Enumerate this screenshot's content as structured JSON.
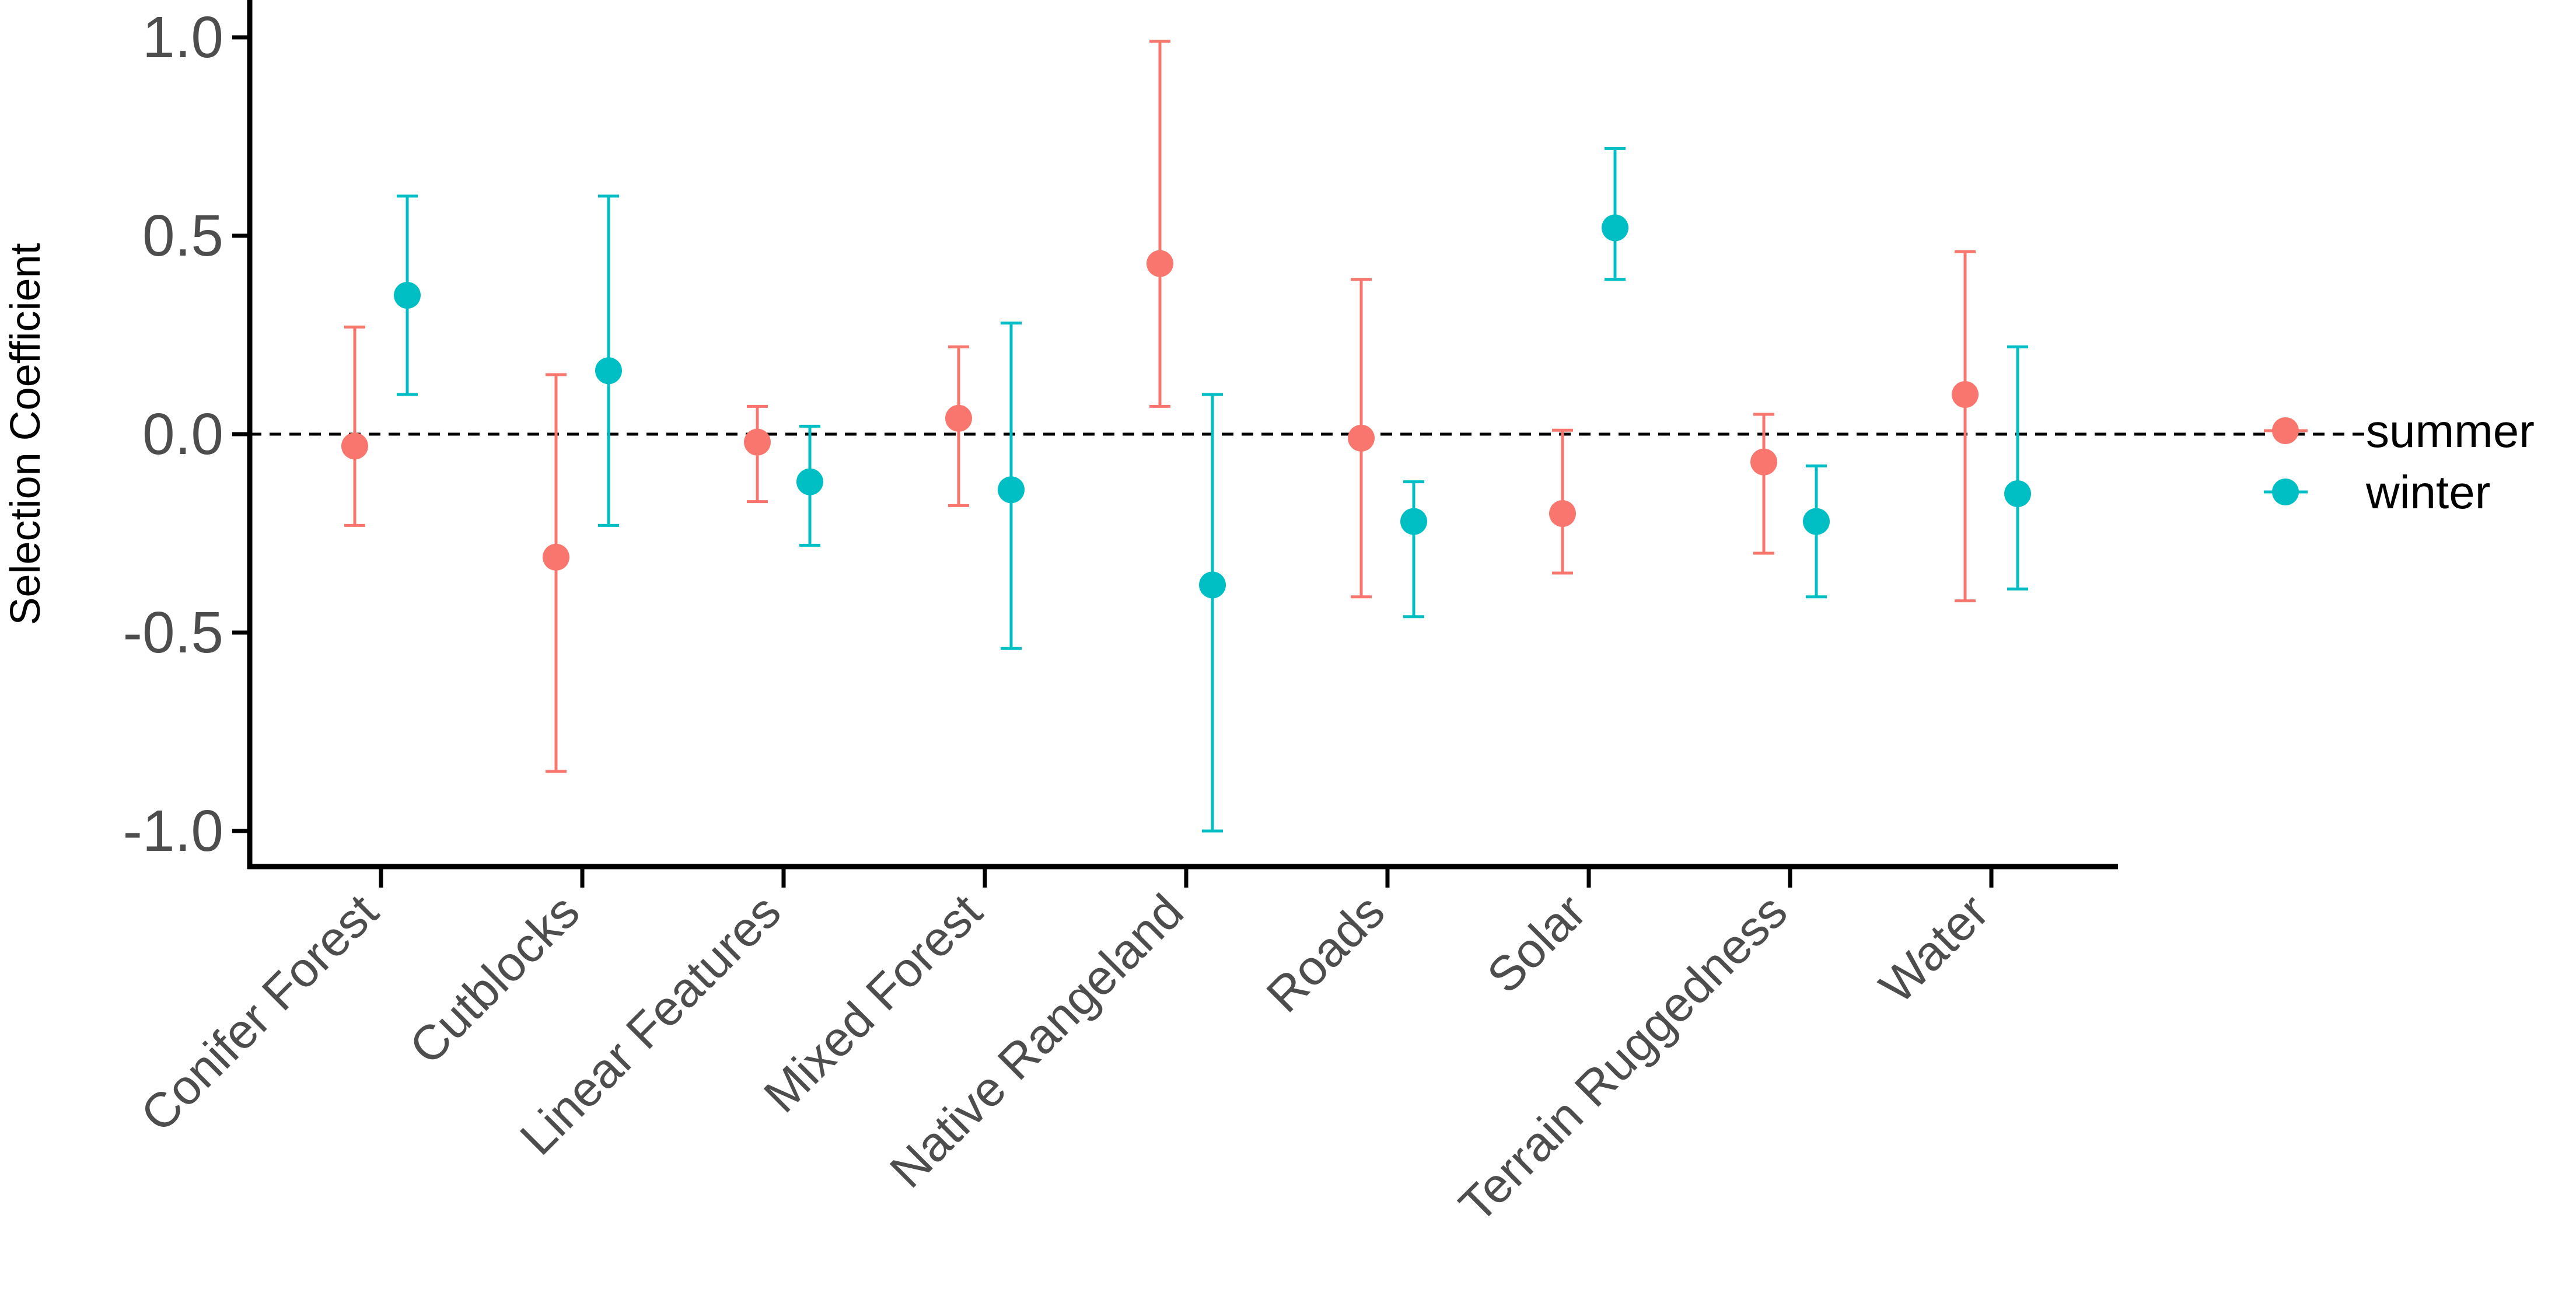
{
  "chart_data": {
    "type": "scatter",
    "subtype": "point-with-error-bars",
    "title": "",
    "xlabel": "",
    "ylabel": "Selection Coefficient",
    "ylim": [
      -1.1,
      1.07
    ],
    "yticks": [
      1.0,
      0.5,
      0.0,
      -0.5,
      -1.0
    ],
    "ytick_labels": [
      "1.0",
      "0.5",
      "0.0",
      "-0.5",
      "-1.0"
    ],
    "reference_line": 0.0,
    "grid": false,
    "legend_position": "right",
    "categories": [
      "Conifer Forest",
      "Cutblocks",
      "Linear Features",
      "Mixed Forest",
      "Native Rangeland",
      "Roads",
      "Solar",
      "Terrain Ruggedness",
      "Water"
    ],
    "series": [
      {
        "name": "summer",
        "color": "#F8766D",
        "values": [
          -0.03,
          -0.31,
          -0.02,
          0.04,
          0.43,
          -0.01,
          -0.2,
          -0.07,
          0.1
        ],
        "lower": [
          -0.23,
          -0.85,
          -0.17,
          -0.18,
          0.07,
          -0.41,
          -0.35,
          -0.3,
          -0.42
        ],
        "upper": [
          0.27,
          0.15,
          0.07,
          0.22,
          0.99,
          0.39,
          0.01,
          0.05,
          0.46
        ]
      },
      {
        "name": "winter",
        "color": "#00BFC4",
        "values": [
          0.35,
          0.16,
          -0.12,
          -0.14,
          -0.38,
          -0.22,
          0.52,
          -0.22,
          -0.15
        ],
        "lower": [
          0.1,
          -0.23,
          -0.28,
          -0.54,
          -1.0,
          -0.46,
          0.39,
          -0.41,
          -0.39
        ],
        "upper": [
          0.6,
          0.6,
          0.02,
          0.28,
          0.1,
          -0.12,
          0.72,
          -0.08,
          0.22
        ]
      }
    ]
  }
}
